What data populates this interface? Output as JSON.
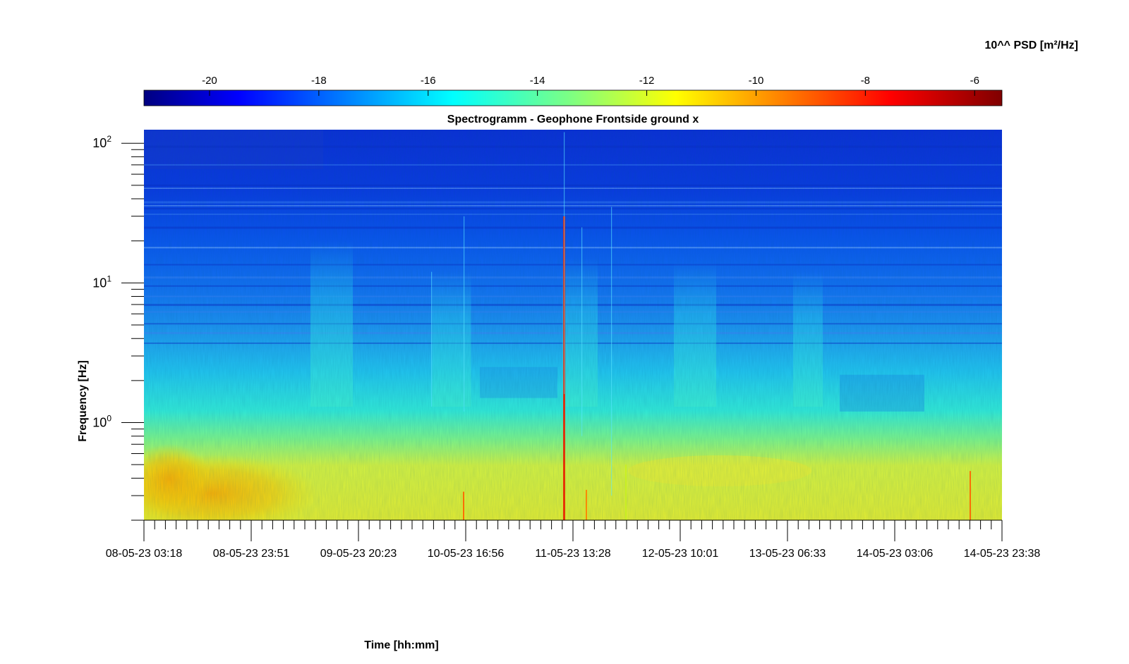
{
  "chart_data": {
    "type": "heatmap",
    "title": "Spectrogramm - Geophone Frontside ground x",
    "xlabel": "Time [hh:mm]",
    "ylabel": "Frequency [Hz]",
    "y_scale": "log",
    "y_range": [
      0.2,
      125
    ],
    "x_tick_labels": [
      "08-05-23 03:18",
      "08-05-23 23:51",
      "09-05-23 20:23",
      "10-05-23 16:56",
      "11-05-23 13:28",
      "12-05-23 10:01",
      "13-05-23 06:33",
      "14-05-23 03:06",
      "14-05-23 23:38"
    ],
    "y_ticks": [
      {
        "base": "10",
        "exp": "2",
        "value": 100
      },
      {
        "base": "10",
        "exp": "1",
        "value": 10
      },
      {
        "base": "10",
        "exp": "0",
        "value": 1
      }
    ],
    "colorbar": {
      "label": "10^^ PSD [m²/Hz]",
      "placement": "top",
      "range": [
        -21.2,
        -5.5
      ],
      "ticks": [
        "-20",
        "-18",
        "-16",
        "-14",
        "-12",
        "-10",
        "-8",
        "-6"
      ],
      "tick_values": [
        -20,
        -18,
        -16,
        -14,
        -12,
        -10,
        -8,
        -6
      ],
      "colormap": "jet"
    },
    "grid": false
  }
}
